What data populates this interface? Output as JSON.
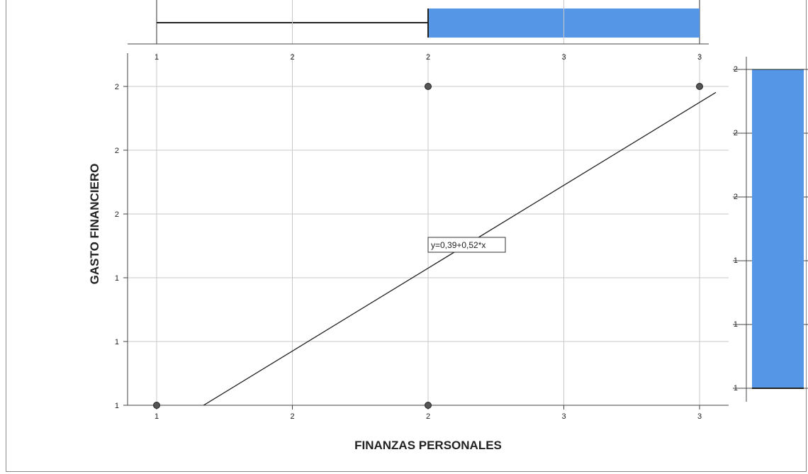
{
  "chart_data": {
    "type": "scatter",
    "title": "",
    "xlabel": "FINANZAS PERSONALES",
    "ylabel": "GASTO FINANCIERO",
    "x_ticks": [
      {
        "value": 1.0,
        "label": "1"
      },
      {
        "value": 1.5,
        "label": "2"
      },
      {
        "value": 2.0,
        "label": "2"
      },
      {
        "value": 2.5,
        "label": "3"
      },
      {
        "value": 3.0,
        "label": "3"
      }
    ],
    "y_ticks": [
      {
        "value": 1.0,
        "label": "1"
      },
      {
        "value": 1.2,
        "label": "1"
      },
      {
        "value": 1.4,
        "label": "1"
      },
      {
        "value": 1.6,
        "label": "2"
      },
      {
        "value": 1.8,
        "label": "2"
      },
      {
        "value": 2.0,
        "label": "2"
      }
    ],
    "xlim": [
      0.88,
      3.06
    ],
    "ylim": [
      1.0,
      2.1
    ],
    "grid": true,
    "points": [
      {
        "x": 1,
        "y": 1
      },
      {
        "x": 2,
        "y": 1
      },
      {
        "x": 2,
        "y": 2
      },
      {
        "x": 3,
        "y": 2
      }
    ],
    "fit_line": {
      "intercept": 0.39,
      "slope": 0.52,
      "x_range": [
        0.88,
        3.06
      ],
      "label": "y=0,39+0,52*x"
    },
    "top_boxplot": {
      "min": 1,
      "q1": 2,
      "median": 2,
      "q3": 3,
      "max": 3
    },
    "right_boxplot": {
      "min": 1,
      "q1": 1,
      "median": 1,
      "q3": 2,
      "max": 2
    },
    "right_ticks": [
      {
        "value": 1.0,
        "label": "1"
      },
      {
        "value": 1.2,
        "label": "1"
      },
      {
        "value": 1.4,
        "label": "1"
      },
      {
        "value": 1.6,
        "label": "2"
      },
      {
        "value": 1.8,
        "label": "2"
      },
      {
        "value": 2.0,
        "label": "2"
      }
    ],
    "colors": {
      "box_fill": "#5596e6",
      "grid": "#c8c8c8",
      "point": "#555555",
      "line": "#222222"
    }
  }
}
